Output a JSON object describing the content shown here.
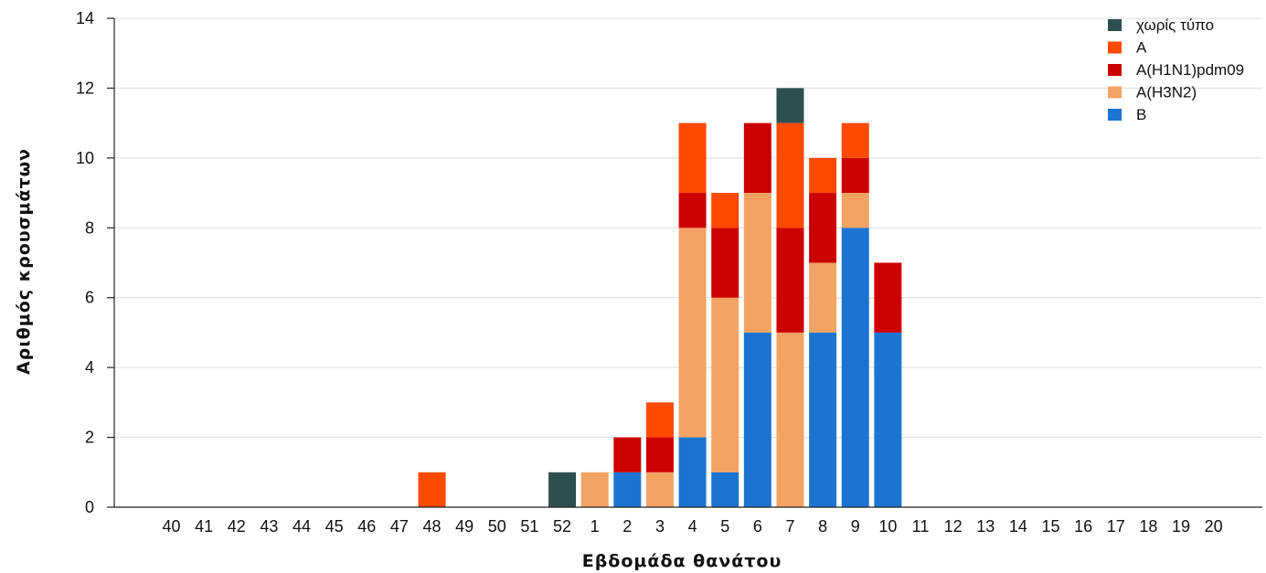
{
  "chart_data": {
    "type": "bar",
    "stacked": true,
    "xlabel": "Εβδομάδα θανάτου",
    "ylabel": "Αριθμός κρουσμάτων",
    "ylim": [
      0,
      14
    ],
    "yticks": [
      "0",
      "2",
      "4",
      "6",
      "8",
      "10",
      "12",
      "14"
    ],
    "grid": "horizontal",
    "legend_position": "top-right",
    "categories": [
      "40",
      "41",
      "42",
      "43",
      "44",
      "45",
      "46",
      "47",
      "48",
      "49",
      "50",
      "51",
      "52",
      "1",
      "2",
      "3",
      "4",
      "5",
      "6",
      "7",
      "8",
      "9",
      "10",
      "11",
      "12",
      "13",
      "14",
      "15",
      "16",
      "17",
      "18",
      "19",
      "20"
    ],
    "series": [
      {
        "name": "B",
        "color": "#1b74d1",
        "values": [
          0,
          0,
          0,
          0,
          0,
          0,
          0,
          0,
          0,
          0,
          0,
          0,
          0,
          0,
          1,
          0,
          2,
          1,
          5,
          0,
          5,
          8,
          5,
          0,
          0,
          0,
          0,
          0,
          0,
          0,
          0,
          0,
          0
        ]
      },
      {
        "name": "A(H3N2)",
        "color": "#f2a364",
        "values": [
          0,
          0,
          0,
          0,
          0,
          0,
          0,
          0,
          0,
          0,
          0,
          0,
          0,
          1,
          0,
          1,
          6,
          5,
          4,
          5,
          2,
          1,
          0,
          0,
          0,
          0,
          0,
          0,
          0,
          0,
          0,
          0,
          0
        ]
      },
      {
        "name": "A(H1N1)pdm09",
        "color": "#cc0000",
        "values": [
          0,
          0,
          0,
          0,
          0,
          0,
          0,
          0,
          0,
          0,
          0,
          0,
          0,
          0,
          1,
          1,
          1,
          2,
          2,
          3,
          2,
          1,
          2,
          0,
          0,
          0,
          0,
          0,
          0,
          0,
          0,
          0,
          0
        ]
      },
      {
        "name": "A",
        "color": "#ff4a00",
        "values": [
          0,
          0,
          0,
          0,
          0,
          0,
          0,
          0,
          1,
          0,
          0,
          0,
          0,
          0,
          0,
          1,
          2,
          1,
          0,
          3,
          1,
          1,
          0,
          0,
          0,
          0,
          0,
          0,
          0,
          0,
          0,
          0,
          0
        ]
      },
      {
        "name": "χωρίς τύπο",
        "color": "#2e4f4f",
        "values": [
          0,
          0,
          0,
          0,
          0,
          0,
          0,
          0,
          0,
          0,
          0,
          0,
          1,
          0,
          0,
          0,
          0,
          0,
          0,
          1,
          0,
          0,
          0,
          0,
          0,
          0,
          0,
          0,
          0,
          0,
          0,
          0,
          0
        ]
      }
    ],
    "legend_order": [
      "χωρίς τύπο",
      "A",
      "A(H1N1)pdm09",
      "A(H3N2)",
      "B"
    ]
  }
}
